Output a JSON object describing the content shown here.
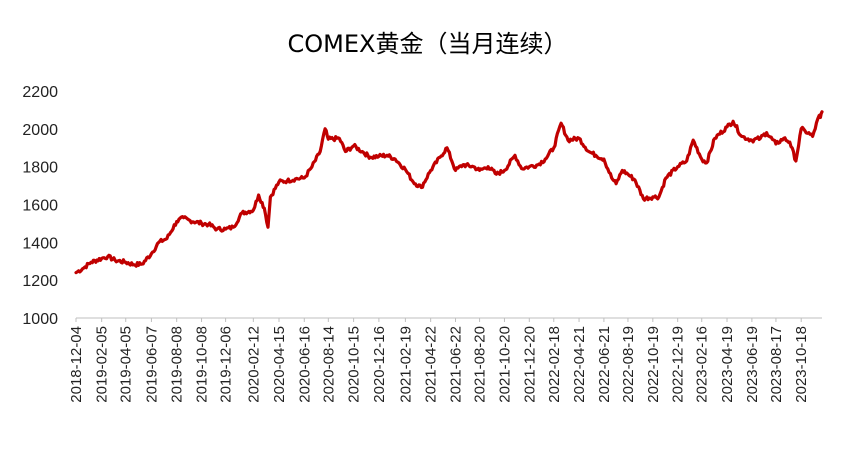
{
  "chart_data": {
    "type": "line",
    "title": "COMEX黄金（当月连续）",
    "xlabel": "",
    "ylabel": "",
    "ylim": [
      1000,
      2200
    ],
    "yticks": [
      1000,
      1200,
      1400,
      1600,
      1800,
      2000,
      2200
    ],
    "x_tick_labels": [
      "2018-12-04",
      "2019-02-05",
      "2019-04-05",
      "2019-06-07",
      "2019-08-08",
      "2019-10-08",
      "2019-12-06",
      "2020-02-12",
      "2020-04-15",
      "2020-06-16",
      "2020-08-14",
      "2020-10-15",
      "2020-12-16",
      "2021-02-19",
      "2021-04-22",
      "2021-06-22",
      "2021-08-20",
      "2021-10-20",
      "2021-12-20",
      "2022-02-18",
      "2022-04-21",
      "2022-06-21",
      "2022-08-19",
      "2022-10-19",
      "2022-12-19",
      "2023-02-16",
      "2023-04-19",
      "2023-06-19",
      "2023-08-17",
      "2023-10-18"
    ],
    "grid": false,
    "legend": "none",
    "line_color": "#c00000",
    "series": [
      {
        "x": [
          "2018-12-04",
          "2018-12-20",
          "2019-01-10",
          "2019-02-05",
          "2019-02-20",
          "2019-03-10",
          "2019-04-05",
          "2019-04-25",
          "2019-05-15",
          "2019-06-07",
          "2019-06-25",
          "2019-07-15",
          "2019-08-08",
          "2019-08-25",
          "2019-09-10",
          "2019-10-08",
          "2019-10-25",
          "2019-11-15",
          "2019-12-06",
          "2019-12-25",
          "2020-01-15",
          "2020-02-12",
          "2020-02-25",
          "2020-03-10",
          "2020-03-19",
          "2020-03-25",
          "2020-04-15",
          "2020-05-05",
          "2020-05-25",
          "2020-06-16",
          "2020-07-05",
          "2020-07-25",
          "2020-08-06",
          "2020-08-14",
          "2020-09-10",
          "2020-09-25",
          "2020-10-15",
          "2020-11-05",
          "2020-11-25",
          "2020-12-16",
          "2021-01-05",
          "2021-01-25",
          "2021-02-19",
          "2021-03-10",
          "2021-03-30",
          "2021-04-22",
          "2021-05-15",
          "2021-06-01",
          "2021-06-22",
          "2021-07-10",
          "2021-08-05",
          "2021-08-20",
          "2021-09-10",
          "2021-09-30",
          "2021-10-20",
          "2021-11-15",
          "2021-12-01",
          "2021-12-20",
          "2022-01-10",
          "2022-01-28",
          "2022-02-18",
          "2022-03-08",
          "2022-03-25",
          "2022-04-21",
          "2022-05-15",
          "2022-06-01",
          "2022-06-21",
          "2022-07-10",
          "2022-07-21",
          "2022-08-05",
          "2022-08-19",
          "2022-09-05",
          "2022-09-26",
          "2022-10-19",
          "2022-11-03",
          "2022-11-20",
          "2022-12-19",
          "2023-01-10",
          "2023-01-26",
          "2023-02-16",
          "2023-02-28",
          "2023-03-20",
          "2023-04-19",
          "2023-05-04",
          "2023-05-25",
          "2023-06-19",
          "2023-07-10",
          "2023-07-25",
          "2023-08-17",
          "2023-09-05",
          "2023-09-20",
          "2023-10-05",
          "2023-10-18",
          "2023-10-27",
          "2023-11-15",
          "2023-12-01",
          "2023-12-04",
          "2023-12-08"
        ],
        "values": [
          1240,
          1260,
          1295,
          1315,
          1325,
          1305,
          1295,
          1282,
          1285,
          1340,
          1400,
          1420,
          1510,
          1530,
          1515,
          1500,
          1495,
          1470,
          1470,
          1480,
          1555,
          1570,
          1650,
          1580,
          1480,
          1640,
          1720,
          1725,
          1735,
          1740,
          1800,
          1880,
          2000,
          1945,
          1950,
          1880,
          1910,
          1880,
          1850,
          1855,
          1860,
          1840,
          1785,
          1720,
          1690,
          1780,
          1850,
          1900,
          1780,
          1810,
          1800,
          1780,
          1800,
          1760,
          1780,
          1860,
          1790,
          1800,
          1810,
          1840,
          1900,
          2030,
          1940,
          1950,
          1880,
          1860,
          1840,
          1740,
          1710,
          1780,
          1760,
          1730,
          1630,
          1640,
          1640,
          1740,
          1800,
          1830,
          1940,
          1840,
          1820,
          1950,
          2010,
          2040,
          1960,
          1940,
          1950,
          1980,
          1920,
          1950,
          1930,
          1830,
          2000,
          1990,
          1960,
          2070,
          2060,
          2090
        ]
      }
    ]
  }
}
